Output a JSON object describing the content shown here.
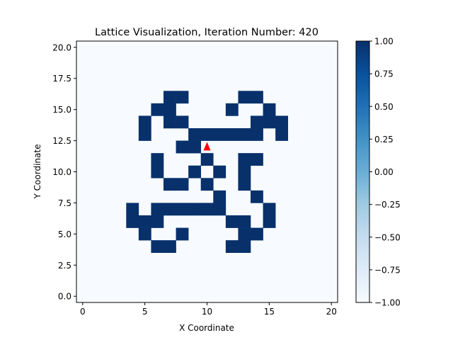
{
  "chart_data": {
    "type": "heatmap",
    "title": "Lattice Visualization, Iteration Number: 420",
    "xlabel": "X Coordinate",
    "ylabel": "Y Coordinate",
    "xlim": [
      -0.5,
      20.5
    ],
    "ylim": [
      -0.5,
      20.5
    ],
    "x_ticks": [
      0,
      5,
      10,
      15,
      20
    ],
    "x_tick_labels": [
      "0",
      "5",
      "10",
      "15",
      "20"
    ],
    "y_ticks": [
      0.0,
      2.5,
      5.0,
      7.5,
      10.0,
      12.5,
      15.0,
      17.5,
      20.0
    ],
    "y_tick_labels": [
      "0.0",
      "2.5",
      "5.0",
      "7.5",
      "10.0",
      "12.5",
      "15.0",
      "17.5",
      "20.0"
    ],
    "grid": false,
    "value_range": [
      -1.0,
      1.0
    ],
    "colormap": "Blues",
    "background_value": -1,
    "cell_value": 1,
    "low_color": "#f7fbff",
    "high_color": "#08306b",
    "colorbar": {
      "ticks": [
        1.0,
        0.75,
        0.5,
        0.25,
        0.0,
        -0.25,
        -0.5,
        -0.75,
        -1.0
      ],
      "tick_labels": [
        "1.00",
        "0.75",
        "0.50",
        "0.25",
        "0.00",
        "−0.25",
        "−0.50",
        "−0.75",
        "−1.00"
      ]
    },
    "active_cells": [
      [
        7,
        16
      ],
      [
        8,
        16
      ],
      [
        13,
        16
      ],
      [
        14,
        16
      ],
      [
        6,
        15
      ],
      [
        7,
        15
      ],
      [
        12,
        15
      ],
      [
        15,
        15
      ],
      [
        5,
        14
      ],
      [
        7,
        14
      ],
      [
        8,
        14
      ],
      [
        14,
        14
      ],
      [
        15,
        14
      ],
      [
        16,
        14
      ],
      [
        5,
        13
      ],
      [
        9,
        13
      ],
      [
        10,
        13
      ],
      [
        11,
        13
      ],
      [
        12,
        13
      ],
      [
        13,
        13
      ],
      [
        14,
        13
      ],
      [
        16,
        13
      ],
      [
        8,
        12
      ],
      [
        9,
        12
      ],
      [
        6,
        11
      ],
      [
        10,
        11
      ],
      [
        13,
        11
      ],
      [
        14,
        11
      ],
      [
        6,
        10
      ],
      [
        9,
        10
      ],
      [
        11,
        10
      ],
      [
        13,
        10
      ],
      [
        7,
        9
      ],
      [
        8,
        9
      ],
      [
        10,
        9
      ],
      [
        13,
        9
      ],
      [
        11,
        8
      ],
      [
        14,
        8
      ],
      [
        4,
        7
      ],
      [
        6,
        7
      ],
      [
        7,
        7
      ],
      [
        8,
        7
      ],
      [
        9,
        7
      ],
      [
        10,
        7
      ],
      [
        11,
        7
      ],
      [
        15,
        7
      ],
      [
        4,
        6
      ],
      [
        5,
        6
      ],
      [
        6,
        6
      ],
      [
        12,
        6
      ],
      [
        13,
        6
      ],
      [
        15,
        6
      ],
      [
        5,
        5
      ],
      [
        8,
        5
      ],
      [
        13,
        5
      ],
      [
        14,
        5
      ],
      [
        6,
        4
      ],
      [
        7,
        4
      ],
      [
        12,
        4
      ],
      [
        13,
        4
      ]
    ],
    "marker": {
      "shape": "triangle-up",
      "x": 10,
      "y": 12,
      "color": "#ff0000"
    }
  }
}
